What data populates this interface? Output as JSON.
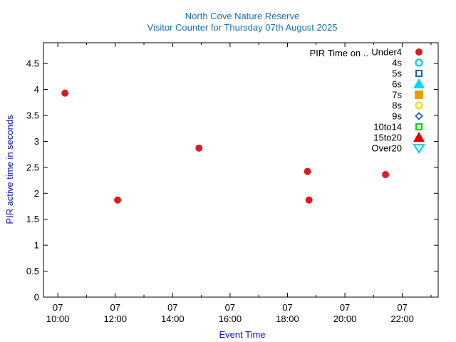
{
  "chart_data": {
    "type": "scatter",
    "title": "North Cove Nature Reserve",
    "subtitle": "Visitor Counter for Thursday 07th August 2025",
    "xlabel": "Event Time",
    "ylabel": "PIR active time in seconds",
    "x_range": [
      "09:30",
      "23:15"
    ],
    "ylim": [
      0,
      4.9
    ],
    "y_ticks": [
      "0",
      "0.5",
      "1",
      "1.5",
      "2",
      "2.5",
      "3",
      "3.5",
      "4",
      "4.5"
    ],
    "x_ticks": [
      {
        "day": "07",
        "time": "10:00"
      },
      {
        "day": "07",
        "time": "12:00"
      },
      {
        "day": "07",
        "time": "14:00"
      },
      {
        "day": "07",
        "time": "16:00"
      },
      {
        "day": "07",
        "time": "18:00"
      },
      {
        "day": "07",
        "time": "20:00"
      },
      {
        "day": "07",
        "time": "22:00"
      }
    ],
    "legend_title": "PIR Time on ..",
    "legend_placement": "top-right",
    "series": [
      {
        "name": "Under4",
        "marker": "filled-circle",
        "color": "#dd1c22",
        "points": [
          {
            "x": "10:15",
            "y": 3.93
          },
          {
            "x": "12:05",
            "y": 1.87
          },
          {
            "x": "14:55",
            "y": 2.87
          },
          {
            "x": "18:42",
            "y": 2.42
          },
          {
            "x": "18:45",
            "y": 1.87
          },
          {
            "x": "21:25",
            "y": 2.36
          }
        ]
      },
      {
        "name": "4s",
        "marker": "open-circle",
        "color": "#00c8e8",
        "points": []
      },
      {
        "name": "5s",
        "marker": "open-square",
        "color": "#1a5fb0",
        "points": []
      },
      {
        "name": "6s",
        "marker": "filled-triangle-up",
        "color": "#00d8f0",
        "points": []
      },
      {
        "name": "7s",
        "marker": "filled-square",
        "color": "#e8a000",
        "points": []
      },
      {
        "name": "8s",
        "marker": "open-circle",
        "color": "#f0e000",
        "points": []
      },
      {
        "name": "9s",
        "marker": "open-diamond",
        "color": "#1a5fb0",
        "points": []
      },
      {
        "name": "10to14",
        "marker": "open-square",
        "color": "#00d800",
        "points": []
      },
      {
        "name": "15to20",
        "marker": "filled-triangle-up",
        "color": "#e00000",
        "points": []
      },
      {
        "name": "Over20",
        "marker": "open-triangle-down",
        "color": "#00d8f0",
        "points": []
      }
    ]
  }
}
